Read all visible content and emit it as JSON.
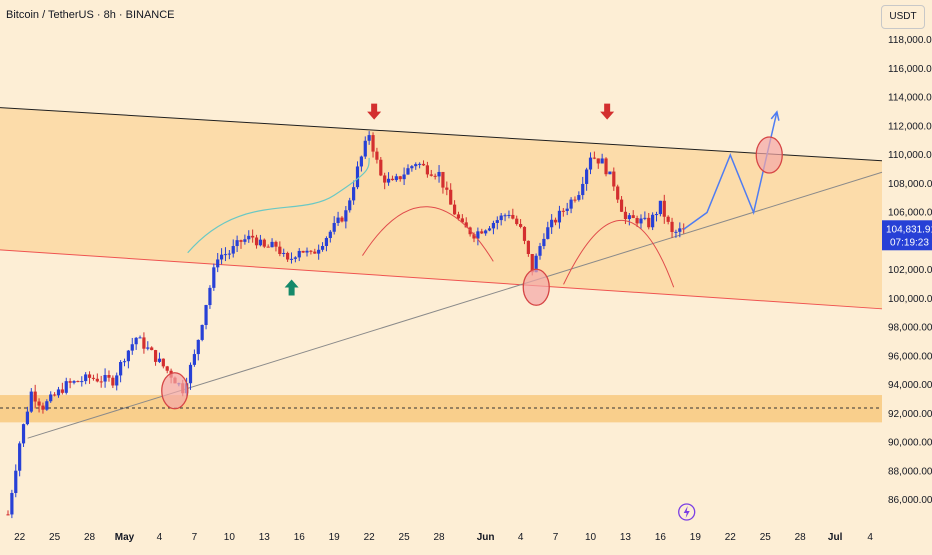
{
  "header": {
    "symbol_title": "Bitcoin / TetherUS · 8h · BINANCE",
    "currency_button": "USDT"
  },
  "price_label": {
    "price": "104,831.91",
    "countdown": "07:19:23"
  },
  "alert_icon": "lightning-icon",
  "colors": {
    "background": "#fdeed5",
    "zone": "#fcdcaa",
    "support_band": "#f9cf8c",
    "up_candle": "#2740d6",
    "down_candle": "#d32f2f",
    "price_label_bg": "#2740d6",
    "projection": "#4f7cf2",
    "curve": "#e04b4b",
    "trend_curve": "#6ac8c4",
    "resistance_line": "#1f1f1f",
    "lower_channel": "#ef5350",
    "ascending_trend": "#8a8a8a"
  },
  "chart_data": {
    "type": "candlestick",
    "title": "Bitcoin / TetherUS · 8h · BINANCE",
    "y_axis": {
      "range": [
        84800,
        119300
      ],
      "ticks": [
        "118,000.00",
        "116,000.00",
        "114,000.00",
        "112,000.00",
        "110,000.00",
        "108,000.00",
        "106,000.00",
        "104,000.00",
        "102,000.00",
        "100,000.00",
        "98,000.00",
        "96,000.00",
        "94,000.00",
        "92,000.00",
        "90,000.00",
        "88,000.00",
        "86,000.00"
      ],
      "scale": "linear",
      "position": "right"
    },
    "x_axis": {
      "ticks": [
        "22",
        "25",
        "28",
        "May",
        "4",
        "7",
        "10",
        "13",
        "16",
        "19",
        "22",
        "25",
        "28",
        "Jun",
        "4",
        "7",
        "10",
        "13",
        "16",
        "19",
        "22",
        "25",
        "28",
        "Jul",
        "4"
      ],
      "bold_ticks": [
        "May",
        "Jun",
        "Jul"
      ],
      "time_unit": "day",
      "range": [
        "Apr 21",
        "Jul 6"
      ]
    },
    "last_price": 104831.91,
    "price_path": [
      {
        "day": "Apr 21",
        "price": 85000
      },
      {
        "day": "Apr 22",
        "price": 90000
      },
      {
        "day": "Apr 23",
        "price": 93500
      },
      {
        "day": "Apr 24",
        "price": 92500
      },
      {
        "day": "Apr 26",
        "price": 94000
      },
      {
        "day": "Apr 28",
        "price": 94500
      },
      {
        "day": "Apr 30",
        "price": 94300
      },
      {
        "day": "May 1",
        "price": 96000
      },
      {
        "day": "May 2",
        "price": 97300
      },
      {
        "day": "May 3",
        "price": 96500
      },
      {
        "day": "May 5",
        "price": 94700
      },
      {
        "day": "May 6",
        "price": 93700
      },
      {
        "day": "May 7",
        "price": 96000
      },
      {
        "day": "May 8",
        "price": 99700
      },
      {
        "day": "May 9",
        "price": 103000
      },
      {
        "day": "May 10",
        "price": 103200
      },
      {
        "day": "May 11",
        "price": 104000
      },
      {
        "day": "May 12",
        "price": 104300
      },
      {
        "day": "May 13",
        "price": 103500
      },
      {
        "day": "May 14",
        "price": 103700
      },
      {
        "day": "May 15",
        "price": 102500
      },
      {
        "day": "May 16",
        "price": 103500
      },
      {
        "day": "May 17",
        "price": 103000
      },
      {
        "day": "May 18",
        "price": 104000
      },
      {
        "day": "May 19",
        "price": 105000
      },
      {
        "day": "May 20",
        "price": 106000
      },
      {
        "day": "May 21",
        "price": 109000
      },
      {
        "day": "May 22",
        "price": 111500
      },
      {
        "day": "May 23",
        "price": 108500
      },
      {
        "day": "May 24",
        "price": 108000
      },
      {
        "day": "May 26",
        "price": 109500
      },
      {
        "day": "May 27",
        "price": 109000
      },
      {
        "day": "May 28",
        "price": 108700
      },
      {
        "day": "May 29",
        "price": 106500
      },
      {
        "day": "May 30",
        "price": 105000
      },
      {
        "day": "May 31",
        "price": 104500
      },
      {
        "day": "Jun 2",
        "price": 105500
      },
      {
        "day": "Jun 3",
        "price": 106000
      },
      {
        "day": "Jun 4",
        "price": 104800
      },
      {
        "day": "Jun 5",
        "price": 102000
      },
      {
        "day": "Jun 6",
        "price": 104500
      },
      {
        "day": "Jun 7",
        "price": 105500
      },
      {
        "day": "Jun 9",
        "price": 107500
      },
      {
        "day": "Jun 10",
        "price": 110000
      },
      {
        "day": "Jun 11",
        "price": 109500
      },
      {
        "day": "Jun 12",
        "price": 108000
      },
      {
        "day": "Jun 13",
        "price": 105500
      },
      {
        "day": "Jun 14",
        "price": 105500
      },
      {
        "day": "Jun 15",
        "price": 105200
      },
      {
        "day": "Jun 16",
        "price": 106500
      },
      {
        "day": "Jun 17",
        "price": 104500
      },
      {
        "day": "Jun 18",
        "price": 104832
      }
    ],
    "annotations": {
      "resistance_line": [
        {
          "day": "Apr 21",
          "price": 113300
        },
        {
          "day": "Jul 6",
          "price": 109600
        }
      ],
      "lower_channel_line": [
        {
          "day": "Apr 21",
          "price": 103400
        },
        {
          "day": "Jul 6",
          "price": 99300
        }
      ],
      "ascending_trendline": [
        {
          "day": "Apr 22",
          "price": 90300
        },
        {
          "day": "Jul 6",
          "price": 108800
        }
      ],
      "support_zone": [
        91400,
        93300
      ],
      "support_level": 92400,
      "projection_path": [
        {
          "day": "Jun 18",
          "price": 104832
        },
        {
          "day": "Jun 20",
          "price": 106000
        },
        {
          "day": "Jun 22",
          "price": 110000
        },
        {
          "day": "Jun 24",
          "price": 106000
        },
        {
          "day": "Jun 26",
          "price": 113000
        }
      ],
      "circles": [
        {
          "day": "May 6",
          "price": 93600
        },
        {
          "day": "Jun 5",
          "price": 100800
        },
        {
          "day": "Jun 25",
          "price": 110000
        }
      ],
      "down_arrows": [
        {
          "day": "May 22",
          "price": 112600
        },
        {
          "day": "Jun 11",
          "price": 112600
        }
      ],
      "up_arrows": [
        {
          "day": "May 15",
          "price": 101200
        }
      ]
    }
  }
}
